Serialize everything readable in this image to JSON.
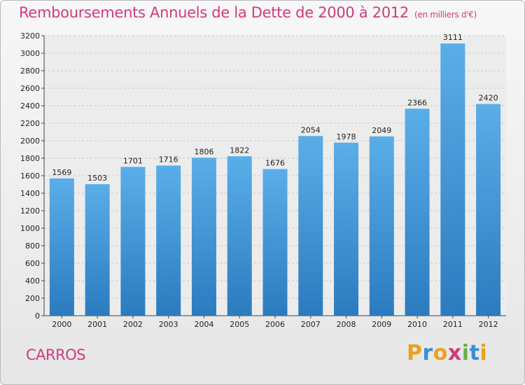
{
  "chart_data": {
    "type": "bar",
    "title": "Remboursements Annuels de la Dette de 2000 à 2012",
    "subtitle": "(en milliers d'€)",
    "categories": [
      "2000",
      "2001",
      "2002",
      "2003",
      "2004",
      "2005",
      "2006",
      "2007",
      "2008",
      "2009",
      "2010",
      "2011",
      "2012"
    ],
    "values": [
      1569,
      1503,
      1701,
      1716,
      1806,
      1822,
      1676,
      2054,
      1978,
      2049,
      2366,
      3111,
      2420
    ],
    "ylim": [
      0,
      3200
    ],
    "yticks": [
      0,
      200,
      400,
      600,
      800,
      1000,
      1200,
      1400,
      1600,
      1800,
      2000,
      2200,
      2400,
      2600,
      2800,
      3000,
      3200
    ],
    "grid": true,
    "bar_color": "#4d9fdc"
  },
  "footer": {
    "commune": "CARROS",
    "logo_letters": [
      "P",
      "r",
      "o",
      "x",
      "i",
      "t",
      "i"
    ],
    "logo_colors": [
      "#e8a21c",
      "#3a8fd1",
      "#e8a21c",
      "#d23a7a",
      "#6ab04c",
      "#3a8fd1",
      "#e8a21c"
    ]
  }
}
